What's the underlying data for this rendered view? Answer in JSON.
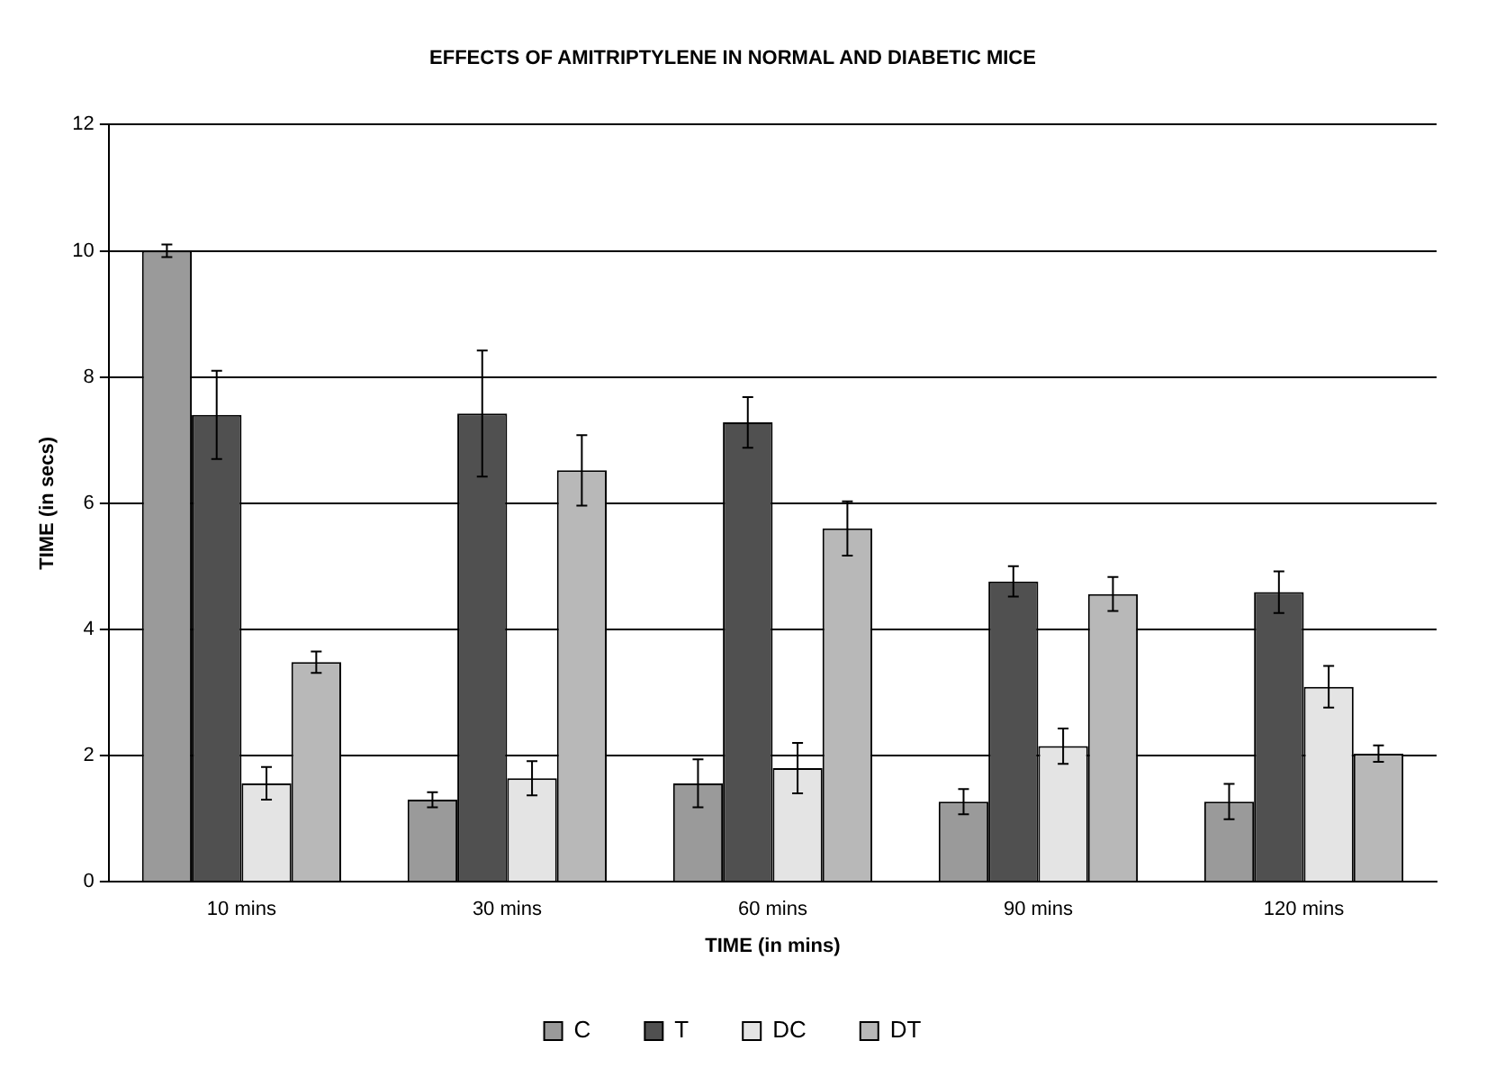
{
  "chart_data": {
    "type": "bar",
    "title": "EFFECTS OF AMITRIPTYLENE IN NORMAL AND DIABETIC MICE",
    "xlabel": "TIME (in mins)",
    "ylabel": "TIME (in secs)",
    "categories": [
      "10 mins",
      "30 mins",
      "60 mins",
      "90 mins",
      "120 mins"
    ],
    "series": [
      {
        "name": "C",
        "color": "#9a9a9a",
        "values": [
          10.0,
          1.3,
          1.56,
          1.27,
          1.27
        ],
        "errors": [
          0.1,
          0.12,
          0.38,
          0.2,
          0.28
        ]
      },
      {
        "name": "T",
        "color": "#505050",
        "values": [
          7.4,
          7.42,
          7.28,
          4.76,
          4.59
        ],
        "errors": [
          0.7,
          1.0,
          0.4,
          0.24,
          0.33
        ]
      },
      {
        "name": "DC",
        "color": "#e4e4e4",
        "values": [
          1.56,
          1.64,
          1.8,
          2.15,
          3.09
        ],
        "errors": [
          0.26,
          0.27,
          0.4,
          0.28,
          0.33
        ]
      },
      {
        "name": "DT",
        "color": "#b8b8b8",
        "values": [
          3.48,
          6.52,
          5.6,
          4.56,
          2.03
        ],
        "errors": [
          0.17,
          0.56,
          0.43,
          0.27,
          0.13
        ]
      }
    ],
    "ylim": [
      0,
      12
    ],
    "yticks": [
      0,
      2,
      4,
      6,
      8,
      10,
      12
    ],
    "grid": "y",
    "legend": "bottom"
  }
}
